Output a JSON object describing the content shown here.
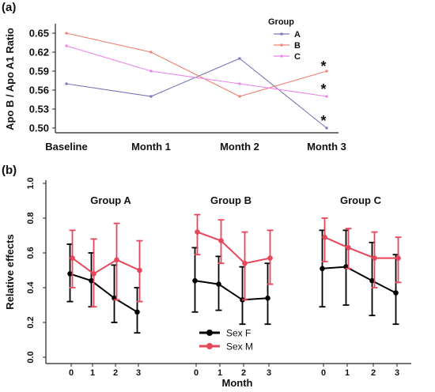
{
  "chart_data": [
    {
      "panel_label": "(a)",
      "type": "line",
      "categories": [
        "Baseline",
        "Month 1",
        "Month 2",
        "Month 3"
      ],
      "ylabel": "Apo B / Apo A1 Ratio",
      "ylim": [
        0.5,
        0.65
      ],
      "yticks": [
        "0.65",
        "0.62",
        "0.59",
        "0.56",
        "0.53",
        "0.50"
      ],
      "legend_title": "Group",
      "legend_position": "top-right",
      "series": [
        {
          "name": "A",
          "color": "#7a74b8",
          "values": [
            0.57,
            0.55,
            0.61,
            0.5
          ]
        },
        {
          "name": "B",
          "color": "#ee7f72",
          "values": [
            0.65,
            0.62,
            0.55,
            0.59
          ]
        },
        {
          "name": "C",
          "color": "#ee82ee",
          "values": [
            0.63,
            0.59,
            0.57,
            0.55
          ]
        }
      ],
      "annotations": [
        "*",
        "*",
        "*"
      ]
    },
    {
      "panel_label": "(b)",
      "type": "line",
      "ylabel": "Relative effects",
      "xlabel": "Month",
      "ylim": [
        0.0,
        1.0
      ],
      "yticks": [
        "1.0",
        "0.8",
        "0.6",
        "0.4",
        "0.2",
        "0.0"
      ],
      "legend_position": "bottom-center",
      "legend": [
        {
          "name": "Sex F",
          "color": "#000000"
        },
        {
          "name": "Sex M",
          "color": "#e8465a"
        }
      ],
      "facets": [
        {
          "title": "Group A",
          "x": [
            "0",
            "1",
            "2",
            "3"
          ],
          "series": [
            {
              "name": "Sex F",
              "values": [
                0.48,
                0.44,
                0.34,
                0.26
              ],
              "lower": [
                0.32,
                0.29,
                0.2,
                0.14
              ],
              "upper": [
                0.65,
                0.6,
                0.53,
                0.4
              ]
            },
            {
              "name": "Sex M",
              "values": [
                0.57,
                0.48,
                0.56,
                0.5
              ],
              "lower": [
                0.4,
                0.29,
                0.33,
                0.32
              ],
              "upper": [
                0.73,
                0.68,
                0.77,
                0.67
              ]
            }
          ]
        },
        {
          "title": "Group B",
          "x": [
            "0",
            "1",
            "2",
            "3"
          ],
          "series": [
            {
              "name": "Sex F",
              "values": [
                0.44,
                0.42,
                0.33,
                0.34
              ],
              "lower": [
                0.26,
                0.27,
                0.19,
                0.19
              ],
              "upper": [
                0.63,
                0.58,
                0.52,
                0.54
              ]
            },
            {
              "name": "Sex M",
              "values": [
                0.72,
                0.67,
                0.54,
                0.57
              ],
              "lower": [
                0.59,
                0.54,
                0.33,
                0.42
              ],
              "upper": [
                0.82,
                0.79,
                0.72,
                0.73
              ]
            }
          ]
        },
        {
          "title": "Group C",
          "x": [
            "0",
            "1",
            "2",
            "3"
          ],
          "series": [
            {
              "name": "Sex F",
              "values": [
                0.51,
                0.52,
                0.44,
                0.37
              ],
              "lower": [
                0.29,
                0.3,
                0.24,
                0.19
              ],
              "upper": [
                0.73,
                0.73,
                0.66,
                0.59
              ]
            },
            {
              "name": "Sex M",
              "values": [
                0.69,
                0.63,
                0.57,
                0.57
              ],
              "lower": [
                0.55,
                0.51,
                0.4,
                0.43
              ],
              "upper": [
                0.8,
                0.74,
                0.72,
                0.69
              ]
            }
          ]
        }
      ]
    }
  ]
}
